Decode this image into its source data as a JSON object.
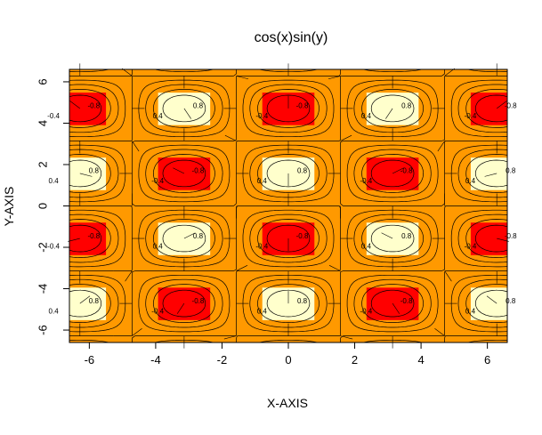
{
  "chart_data": {
    "type": "heatmap",
    "title": "cos(x)sin(y)",
    "xlabel": "X-AXIS",
    "ylabel": "Y-AXIS",
    "function": "cos(x)sin(y)",
    "xlim": [
      -6.6,
      6.6
    ],
    "ylim": [
      -6.6,
      6.6
    ],
    "grid_x": [
      -6.2832,
      -4.7124,
      -3.1416,
      -1.5708,
      0,
      1.5708,
      3.1416,
      4.7124,
      6.2832
    ],
    "grid_y": [
      -6.2832,
      -4.7124,
      -3.1416,
      -1.5708,
      0,
      1.5708,
      3.1416,
      4.7124,
      6.2832
    ],
    "x_ticks": [
      -6,
      -4,
      -2,
      0,
      2,
      4,
      6
    ],
    "y_ticks": [
      -6,
      -4,
      -2,
      0,
      2,
      4,
      6
    ],
    "x_tick_labels": [
      "-6",
      "-4",
      "-2",
      "0",
      "2",
      "4",
      "6"
    ],
    "y_tick_labels": [
      "-6",
      "-4",
      "-2",
      "0",
      "2",
      "4",
      "6"
    ],
    "contour_levels": [
      -0.8,
      -0.6,
      -0.4,
      -0.2,
      0,
      0.2,
      0.4,
      0.6,
      0.8
    ],
    "colors": {
      "lowest": "#ff0000",
      "low": "#ff3300",
      "mid_low": "#ff8000",
      "mid": "#ff9900",
      "mid_high": "#ffcc00",
      "high": "#ffff00",
      "highest": "#ffffcc",
      "contour": "#000000",
      "background": "#ffffff"
    },
    "grid": false,
    "legend": "none"
  }
}
